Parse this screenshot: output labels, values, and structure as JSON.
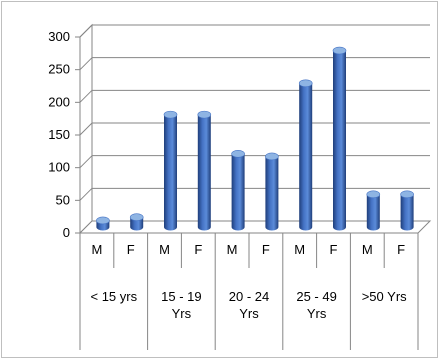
{
  "chart_data": {
    "type": "bar",
    "style": "3d-cylinder",
    "title": "",
    "xlabel": "",
    "ylabel": "",
    "ylim": [
      0,
      300
    ],
    "yticks": [
      0,
      50,
      100,
      150,
      200,
      250,
      300
    ],
    "grid": true,
    "legend": "none",
    "bar_color": "#4472C4",
    "bar_top_color": "#8EB4E3",
    "bar_dark_color": "#1F3E7A",
    "groups": [
      {
        "label": "< 15 yrs",
        "categories": [
          "M",
          "F"
        ],
        "values": [
          10,
          15
        ]
      },
      {
        "label": "15 - 19 Yrs",
        "categories": [
          "M",
          "F"
        ],
        "values": [
          172,
          172
        ]
      },
      {
        "label": "20 - 24 Yrs",
        "categories": [
          "M",
          "F"
        ],
        "values": [
          112,
          108
        ]
      },
      {
        "label": "25 - 49 Yrs",
        "categories": [
          "M",
          "F"
        ],
        "values": [
          220,
          270
        ]
      },
      {
        "label": ">50 Yrs",
        "categories": [
          "M",
          "F"
        ],
        "values": [
          50,
          50
        ]
      }
    ]
  }
}
